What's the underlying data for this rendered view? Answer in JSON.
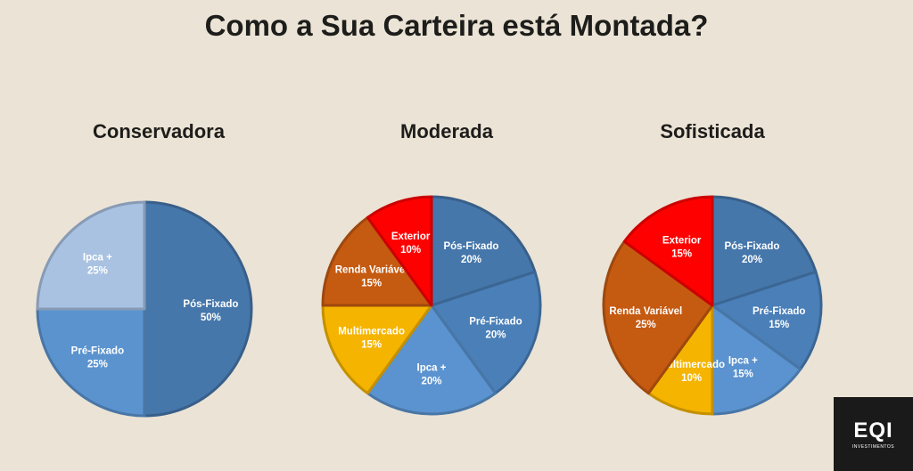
{
  "title": "Como a Sua Carteira está Montada?",
  "logo": {
    "text": "EQI",
    "subtitle": "INVESTIMENTOS"
  },
  "colors": {
    "pos_fixado": "#4677ab",
    "pre_fixado": "#5b93cf",
    "ipca_light": "#a9c2e2",
    "ipca": "#5a93cf",
    "multimercado": "#f5b400",
    "renda_variavel": "#c55a11",
    "exterior": "#ff0000"
  },
  "chart_data": [
    {
      "type": "pie",
      "title": "Conservadora",
      "slices": [
        {
          "label": "Pós-Fixado",
          "value": 50,
          "display": "50%",
          "color": "#4677ab"
        },
        {
          "label": "Pré-Fixado",
          "value": 25,
          "display": "25%",
          "color": "#5b93cf"
        },
        {
          "label": "Ipca +",
          "value": 25,
          "display": "25%",
          "color": "#a9c2e2"
        }
      ]
    },
    {
      "type": "pie",
      "title": "Moderada",
      "slices": [
        {
          "label": "Pós-Fixado",
          "value": 20,
          "display": "20%",
          "color": "#4677ab"
        },
        {
          "label": "Pré-Fixado",
          "value": 20,
          "display": "20%",
          "color": "#4a7fb8"
        },
        {
          "label": "Ipca +",
          "value": 20,
          "display": "20%",
          "color": "#5a93cf"
        },
        {
          "label": "Multimercado",
          "value": 15,
          "display": "15%",
          "color": "#f5b400"
        },
        {
          "label": "Renda Variável",
          "value": 15,
          "display": "15%",
          "color": "#c55a11"
        },
        {
          "label": "Exterior",
          "value": 10,
          "display": "10%",
          "color": "#ff0000"
        }
      ]
    },
    {
      "type": "pie",
      "title": "Sofisticada",
      "slices": [
        {
          "label": "Pós-Fixado",
          "value": 20,
          "display": "20%",
          "color": "#4677ab"
        },
        {
          "label": "Pré-Fixado",
          "value": 15,
          "display": "15%",
          "color": "#4a7fb8"
        },
        {
          "label": "Ipca +",
          "value": 15,
          "display": "15%",
          "color": "#5a93cf"
        },
        {
          "label": "Multimercado",
          "value": 10,
          "display": "10%",
          "color": "#f5b400"
        },
        {
          "label": "Renda Variável",
          "value": 25,
          "display": "25%",
          "color": "#c55a11"
        },
        {
          "label": "Exterior",
          "value": 15,
          "display": "15%",
          "color": "#ff0000"
        }
      ]
    }
  ]
}
